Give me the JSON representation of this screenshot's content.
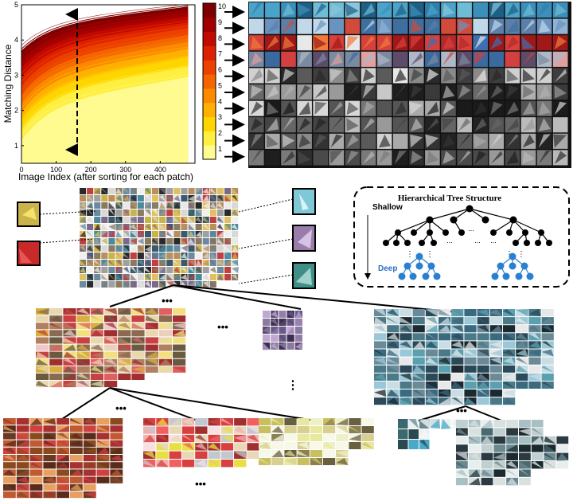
{
  "chart_data": {
    "type": "line",
    "title": "",
    "xlabel": "Image Index (after sorting for each patch)",
    "ylabel": "Matching Distance",
    "xlim": [
      0,
      500
    ],
    "ylim": [
      0.5,
      5
    ],
    "x_ticks": [
      "0",
      "100",
      "200",
      "300",
      "400"
    ],
    "y_ticks": [
      "1",
      "2",
      "3",
      "4",
      "5"
    ],
    "colorbar": {
      "ticks": [
        "1",
        "2",
        "3",
        "4",
        "5",
        "6",
        "7",
        "8",
        "9",
        "10"
      ]
    },
    "series_bands": [
      {
        "level": 10,
        "color": "#7f0000",
        "start": 3.7,
        "end": 4.95
      },
      {
        "level": 9,
        "color": "#a00000",
        "start": 3.45,
        "end": 4.8
      },
      {
        "level": 8,
        "color": "#c10a00",
        "start": 3.2,
        "end": 4.65
      },
      {
        "level": 7,
        "color": "#dc2000",
        "start": 2.95,
        "end": 4.5
      },
      {
        "level": 6,
        "color": "#eb4000",
        "start": 2.7,
        "end": 4.35
      },
      {
        "level": 5,
        "color": "#f56400",
        "start": 2.45,
        "end": 4.15
      },
      {
        "level": 4,
        "color": "#fb8a00",
        "start": 2.2,
        "end": 3.95
      },
      {
        "level": 3,
        "color": "#ffb000",
        "start": 1.95,
        "end": 3.75
      },
      {
        "level": 2,
        "color": "#ffd500",
        "start": 1.7,
        "end": 3.5
      },
      {
        "level": 1,
        "color": "#ffef40",
        "start": 1.45,
        "end": 3.25
      },
      {
        "level": 0,
        "color": "#fffb90",
        "start": 1.15,
        "end": 2.95
      }
    ]
  },
  "tree": {
    "title": "Hierarchical Tree Structure",
    "shallow_label": "Shallow",
    "deep_label": "Deep",
    "ellipsis": "...",
    "dots": "⋮"
  },
  "ellipses": {
    "mark": "•••"
  },
  "colors": {
    "node_shallow": "#000000",
    "node_deep": "#2a80d0",
    "deep_text": "#2a6fc0"
  }
}
